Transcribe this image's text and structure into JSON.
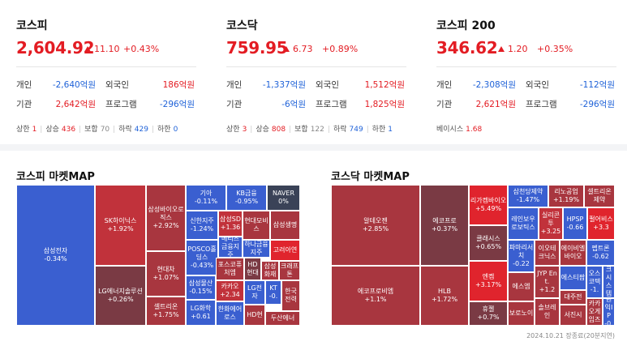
{
  "indices": [
    {
      "name": "코스피",
      "value": "2,604.92",
      "change": "11.10",
      "pct": "+0.43%",
      "rows": [
        {
          "l1": "개인",
          "v1": "-2,640억원",
          "c1": "blue",
          "l2": "외국인",
          "v2": "186억원",
          "c2": "red"
        },
        {
          "l1": "기관",
          "v1": "2,642억원",
          "c1": "red",
          "l2": "프로그램",
          "v2": "-296억원",
          "c2": "blue"
        }
      ],
      "breadth": [
        {
          "label": "상한",
          "num": "1",
          "c": "red"
        },
        {
          "label": "상승",
          "num": "436",
          "c": "red"
        },
        {
          "label": "보합",
          "num": "70",
          "c": "gray"
        },
        {
          "label": "하락",
          "num": "429",
          "c": "blue"
        },
        {
          "label": "하한",
          "num": "0",
          "c": "blue"
        }
      ]
    },
    {
      "name": "코스닥",
      "value": "759.95",
      "change": "6.73",
      "pct": "+0.89%",
      "rows": [
        {
          "l1": "개인",
          "v1": "-1,337억원",
          "c1": "blue",
          "l2": "외국인",
          "v2": "1,512억원",
          "c2": "red"
        },
        {
          "l1": "기관",
          "v1": "-6억원",
          "c1": "blue",
          "l2": "프로그램",
          "v2": "1,825억원",
          "c2": "red"
        }
      ],
      "breadth": [
        {
          "label": "상한",
          "num": "3",
          "c": "red"
        },
        {
          "label": "상승",
          "num": "808",
          "c": "red"
        },
        {
          "label": "보합",
          "num": "122",
          "c": "gray"
        },
        {
          "label": "하락",
          "num": "749",
          "c": "blue"
        },
        {
          "label": "하한",
          "num": "1",
          "c": "blue"
        }
      ]
    },
    {
      "name": "코스피 200",
      "value": "346.62",
      "change": "1.20",
      "pct": "+0.35%",
      "rows": [
        {
          "l1": "개인",
          "v1": "-2,308억원",
          "c1": "blue",
          "l2": "외국인",
          "v2": "-112억원",
          "c2": "blue"
        },
        {
          "l1": "기관",
          "v1": "2,621억원",
          "c1": "red",
          "l2": "프로그램",
          "v2": "-296억원",
          "c2": "blue"
        }
      ],
      "basis_label": "베이시스",
      "basis_value": "1.68"
    }
  ],
  "maps": {
    "kospi_title": "코스피 마켓MAP",
    "kosdaq_title": "코스닥 마켓MAP",
    "timestamp": "2024.10.21 장종료(20분지연)",
    "kospi_tiles": [
      {
        "name": "삼성전자",
        "pct": "-0.34%",
        "c": "c-blue"
      },
      {
        "name": "SK하이닉스",
        "pct": "+1.92%",
        "c": "c-red1"
      },
      {
        "name": "LG에너지솔루션",
        "pct": "+0.26%",
        "c": "c-dark"
      },
      {
        "name": "삼성바이오로직스",
        "pct": "+2.92%",
        "c": "c-red2"
      },
      {
        "name": "현대차",
        "pct": "+1.07%",
        "c": "c-red2"
      },
      {
        "name": "셀트리온",
        "pct": "+1.75%",
        "c": "c-red2"
      },
      {
        "name": "기아",
        "pct": "-0.11%",
        "c": "c-blue"
      },
      {
        "name": "KB금융",
        "pct": "-0.95%",
        "c": "c-blue"
      },
      {
        "name": "NAVER",
        "pct": "0%",
        "c": "c-navy"
      },
      {
        "name": "신한지주",
        "pct": "-1.24%",
        "c": "c-blue"
      },
      {
        "name": "삼성SD",
        "pct": "+1.36",
        "c": "c-red1"
      },
      {
        "name": "현대모비스",
        "pct": "",
        "c": "c-red2"
      },
      {
        "name": "삼성생명",
        "pct": "",
        "c": "c-red2"
      },
      {
        "name": "메리츠금융지주",
        "pct": "",
        "c": "c-blue"
      },
      {
        "name": "하나금융지주",
        "pct": "",
        "c": "c-blue"
      },
      {
        "name": "고려아연",
        "pct": "",
        "c": "c-red3"
      },
      {
        "name": "POSCO홀딩스",
        "pct": "-0.43%",
        "c": "c-blue"
      },
      {
        "name": "포스코퓨처엠",
        "pct": "",
        "c": "c-red2"
      },
      {
        "name": "HD현대",
        "pct": "",
        "c": "c-dark"
      },
      {
        "name": "삼성화재",
        "pct": "",
        "c": "c-red2"
      },
      {
        "name": "크래프톤",
        "pct": "",
        "c": "c-red2"
      },
      {
        "name": "삼성물산",
        "pct": "-0.15%",
        "c": "c-blue"
      },
      {
        "name": "카카오",
        "pct": "+2.34",
        "c": "c-red1"
      },
      {
        "name": "LG전자",
        "pct": "",
        "c": "c-blue"
      },
      {
        "name": "KT",
        "pct": "-0.",
        "c": "c-blue"
      },
      {
        "name": "한국전력",
        "pct": "",
        "c": "c-red2"
      },
      {
        "name": "LG화학",
        "pct": "+0.61",
        "c": "c-blue"
      },
      {
        "name": "한화에어로스",
        "pct": "",
        "c": "c-blue"
      },
      {
        "name": "HD현",
        "pct": "",
        "c": "c-red2"
      },
      {
        "name": "두산에너",
        "pct": "",
        "c": "c-red2"
      }
    ],
    "kosdaq_tiles": [
      {
        "name": "알테오젠",
        "pct": "+2.85%",
        "c": "c-red2"
      },
      {
        "name": "에코프로비엠",
        "pct": "+1.1%",
        "c": "c-red2"
      },
      {
        "name": "에코프로",
        "pct": "+0.37%",
        "c": "c-dark"
      },
      {
        "name": "HLB",
        "pct": "+1.72%",
        "c": "c-red2"
      },
      {
        "name": "리가켐바이오",
        "pct": "+5.49%",
        "c": "c-red3"
      },
      {
        "name": "클래시스",
        "pct": "+0.65%",
        "c": "c-dark"
      },
      {
        "name": "엔켐",
        "pct": "+3.17%",
        "c": "c-red3"
      },
      {
        "name": "휴젤",
        "pct": "+0.7%",
        "c": "c-dark"
      },
      {
        "name": "삼천당제약",
        "pct": "-1.47%",
        "c": "c-blue"
      },
      {
        "name": "리노공업",
        "pct": "+1.19%",
        "c": "c-red2"
      },
      {
        "name": "셀트리온제약",
        "pct": "",
        "c": "c-red2"
      },
      {
        "name": "레인보우로보틱스",
        "pct": "",
        "c": "c-blue"
      },
      {
        "name": "실리콘투",
        "pct": "+3.25",
        "c": "c-red1"
      },
      {
        "name": "HPSP",
        "pct": "-0.66",
        "c": "c-blue"
      },
      {
        "name": "펄어비스",
        "pct": "+3.3",
        "c": "c-red3"
      },
      {
        "name": "파마리서치",
        "pct": "-0.22",
        "c": "c-blue"
      },
      {
        "name": "이오테크닉스",
        "pct": "",
        "c": "c-red2"
      },
      {
        "name": "에이비엘바이오",
        "pct": "",
        "c": "c-red2"
      },
      {
        "name": "펩트론",
        "pct": "-0.62",
        "c": "c-blue"
      },
      {
        "name": "에스티팜",
        "pct": "",
        "c": "c-blue"
      },
      {
        "name": "JYP Ent.",
        "pct": "+1.2",
        "c": "c-red2"
      },
      {
        "name": "에스엠",
        "pct": "",
        "c": "c-red2"
      },
      {
        "name": "오스코텍",
        "pct": "-1.",
        "c": "c-blue"
      },
      {
        "name": "파크시스템스",
        "pct": "",
        "c": "c-blue"
      },
      {
        "name": "보로노이",
        "pct": "",
        "c": "c-red2"
      },
      {
        "name": "솔브레인",
        "pct": "",
        "c": "c-red2"
      },
      {
        "name": "대주전",
        "pct": "",
        "c": "c-red2"
      },
      {
        "name": "서진시",
        "pct": "",
        "c": "c-red2"
      },
      {
        "name": "카카오게임즈",
        "pct": "",
        "c": "c-red2"
      },
      {
        "name": "원익IP",
        "pct": "-0.",
        "c": "c-blue"
      }
    ]
  }
}
